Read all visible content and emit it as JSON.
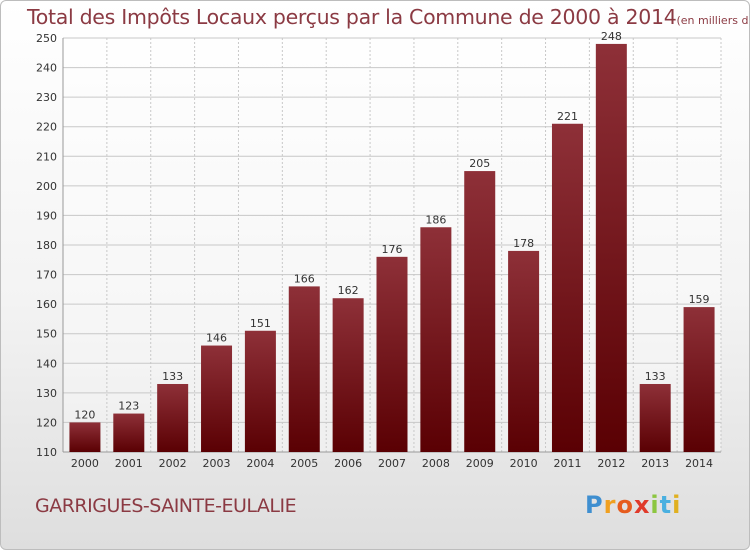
{
  "chart_data": {
    "type": "bar",
    "title": "Total des Impôts Locaux perçus par la Commune de 2000 à 2014",
    "title_unit": "(en milliers d'€)",
    "categories": [
      "2000",
      "2001",
      "2002",
      "2003",
      "2004",
      "2005",
      "2006",
      "2007",
      "2008",
      "2009",
      "2010",
      "2011",
      "2012",
      "2013",
      "2014"
    ],
    "values": [
      120,
      123,
      133,
      146,
      151,
      166,
      162,
      176,
      186,
      205,
      178,
      221,
      248,
      133,
      159
    ],
    "ylim": [
      110,
      250
    ],
    "yticks": [
      110,
      120,
      130,
      140,
      150,
      160,
      170,
      180,
      190,
      200,
      210,
      220,
      230,
      240,
      250
    ],
    "grid": true,
    "bar_color_top": "#8e3038",
    "bar_color_bottom": "#5a0003",
    "xlabel": "",
    "ylabel": ""
  },
  "commune_name": "GARRIGUES-SAINTE-EULALIE",
  "logo": {
    "letters": [
      "P",
      "r",
      "o",
      "x",
      "i",
      "t",
      "i"
    ],
    "colors": [
      "#3f8fd0",
      "#f0a020",
      "#e65c1e",
      "#e03a2a",
      "#8cc640",
      "#4ab0e0",
      "#e0b020"
    ]
  }
}
